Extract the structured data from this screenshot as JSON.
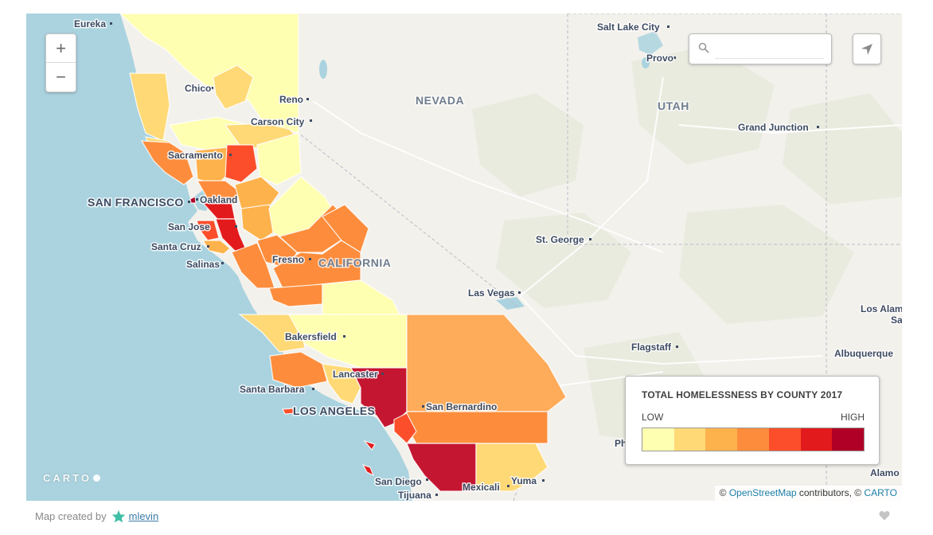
{
  "map": {
    "places": {
      "eureka": "Eureka",
      "chico": "Chico",
      "reno": "Reno",
      "carson_city": "Carson City",
      "sacramento": "Sacramento",
      "san_francisco": "SAN FRANCISCO",
      "oakland": "Oakland",
      "san_jose": "San Jose",
      "santa_cruz": "Santa Cruz",
      "salinas": "Salinas",
      "fresno": "Fresno",
      "bakersfield": "Bakersfield",
      "santa_barbara": "Santa Barbara",
      "lancaster": "Lancaster",
      "los_angeles": "LOS ANGELES",
      "san_bernardino": "San Bernardino",
      "san_diego": "San Diego",
      "tijuana": "Tijuana",
      "mexicali": "Mexicali",
      "yuma": "Yuma",
      "las_vegas": "Las Vegas",
      "st_george": "St. George",
      "salt_lake_city": "Salt Lake City",
      "provo": "Provo",
      "grand_junction": "Grand Junction",
      "flagstaff": "Flagstaff",
      "albuquerque": "Albuquerque",
      "los_alamos": "Los Alam",
      "santa_fe_partial": "Sa",
      "phoenix_partial": "Ph",
      "alamogordo_partial": "Alamo"
    },
    "states": {
      "nevada": "NEVADA",
      "utah": "UTAH",
      "california": "CALIFORNIA"
    },
    "colors": {
      "ocean": "#aad3df",
      "land": "#f3f1ec",
      "ramp": [
        "#ffffb2",
        "#fed976",
        "#feb24c",
        "#fd8d3c",
        "#fc4e2a",
        "#e31a1c",
        "#b10026"
      ]
    }
  },
  "controls": {
    "zoom_in": "+",
    "zoom_out": "−",
    "search_placeholder": "",
    "search_value": ""
  },
  "legend": {
    "title": "TOTAL HOMELESSNESS BY COUNTY 2017",
    "low": "LOW",
    "high": "HIGH"
  },
  "branding": {
    "carto_logo": "CARTO"
  },
  "attribution": {
    "prefix": "© ",
    "osm_link": "OpenStreetMap",
    "middle": " contributors, © ",
    "carto_link": "CARTO"
  },
  "footer": {
    "prefix": "Map created by",
    "author": "mlevin"
  }
}
